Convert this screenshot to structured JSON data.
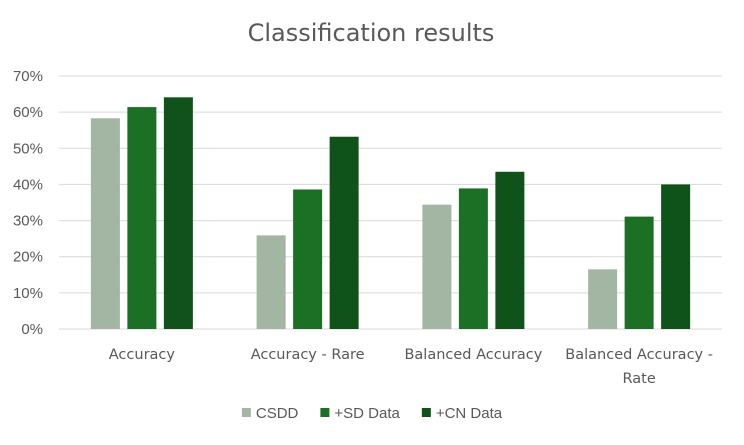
{
  "chart_data": {
    "type": "bar",
    "title": "Classification results",
    "xlabel": "",
    "ylabel": "",
    "ylim": [
      0,
      0.7
    ],
    "yticks": [
      "0%",
      "10%",
      "20%",
      "30%",
      "40%",
      "50%",
      "60%",
      "70%"
    ],
    "categories": [
      [
        "Accuracy"
      ],
      [
        "Accuracy - Rare"
      ],
      [
        "Balanced Accuracy"
      ],
      [
        "Balanced Accuracy -",
        "Rate"
      ]
    ],
    "series": [
      {
        "name": "CSDD",
        "color": "#a3b5a3",
        "values": [
          0.583,
          0.259,
          0.344,
          0.165
        ]
      },
      {
        "name": "+SD Data",
        "color": "#1b7025",
        "values": [
          0.614,
          0.386,
          0.389,
          0.311
        ]
      },
      {
        "name": "+CN Data",
        "color": "#0f531a",
        "values": [
          0.641,
          0.532,
          0.435,
          0.4
        ]
      }
    ],
    "grid": true,
    "legend_position": "bottom"
  }
}
